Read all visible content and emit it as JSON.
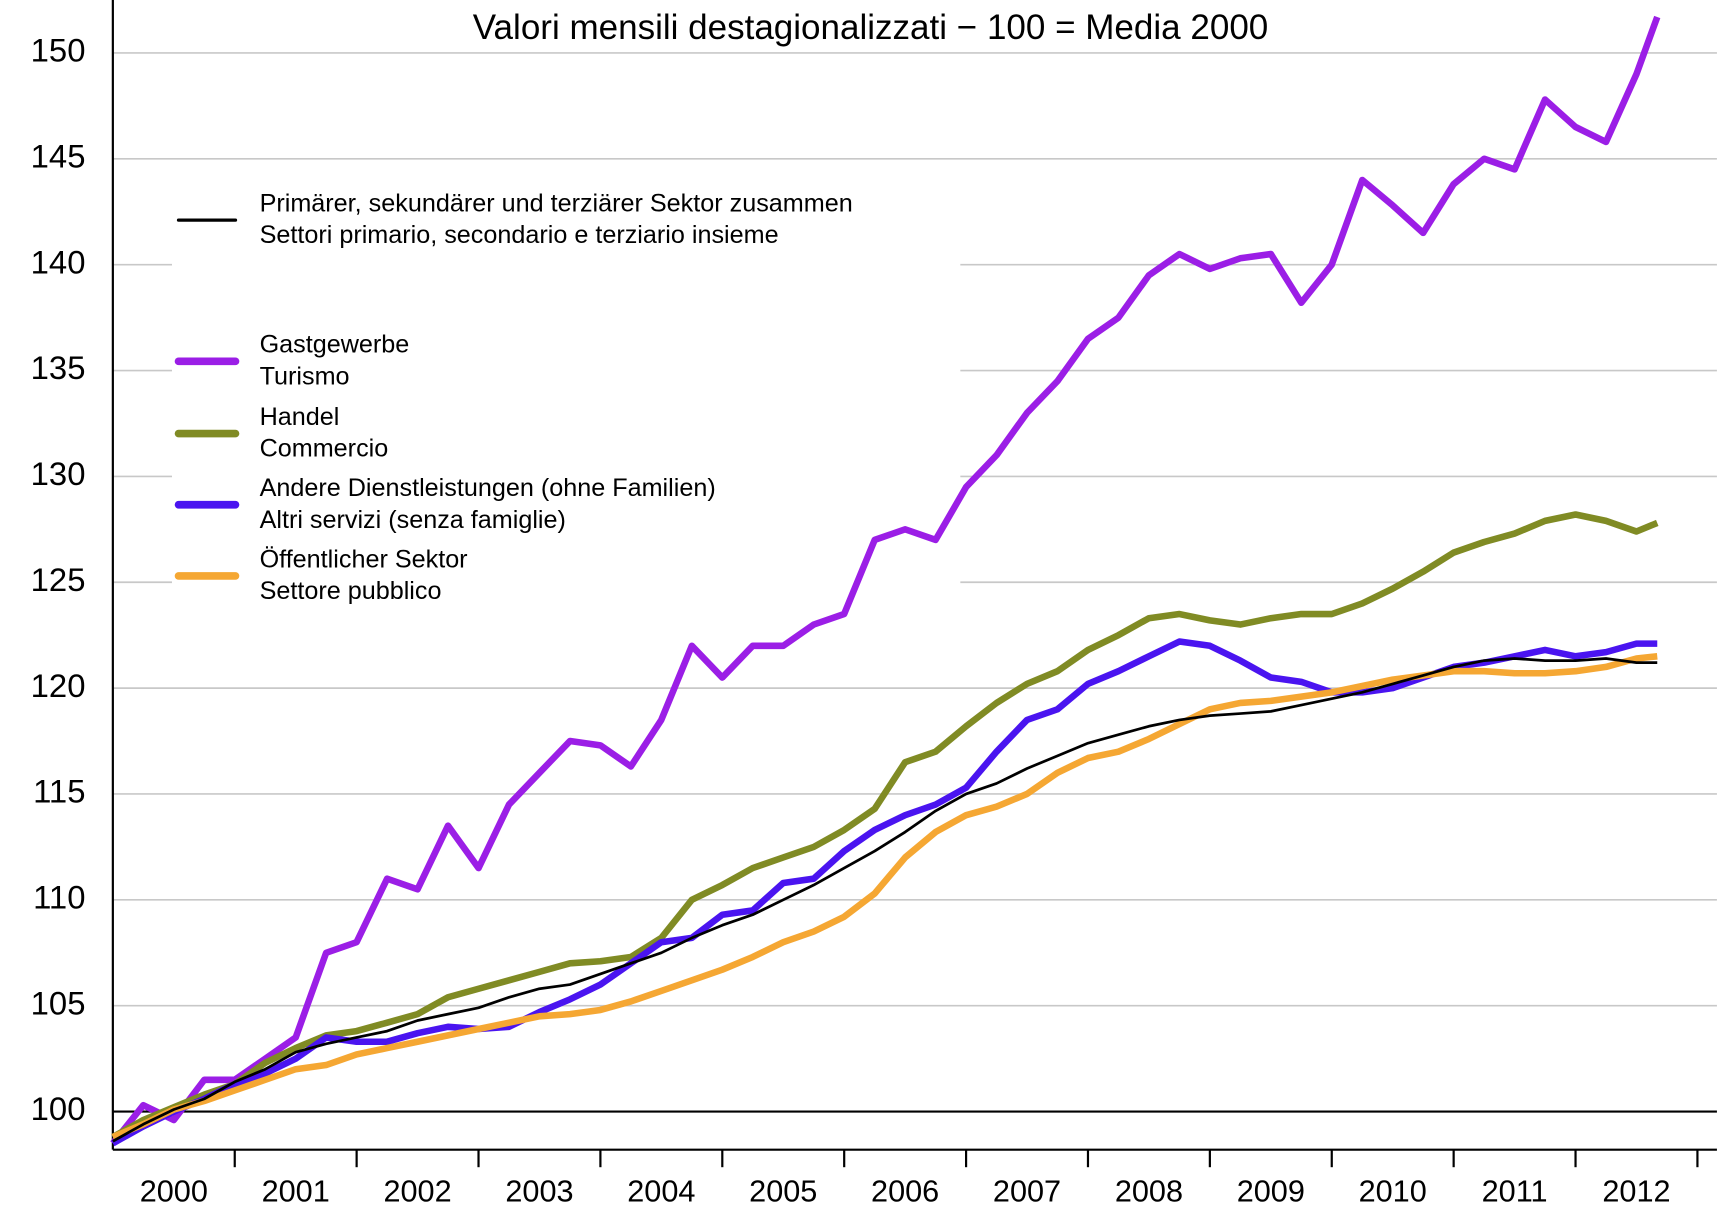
{
  "chart_data": {
    "type": "line",
    "title": "Valori mensili destagionalizzati − 100 = Media 2000",
    "x": [
      2000,
      2000.25,
      2000.5,
      2000.75,
      2001,
      2001.25,
      2001.5,
      2001.75,
      2002,
      2002.25,
      2002.5,
      2002.75,
      2003,
      2003.25,
      2003.5,
      2003.75,
      2004,
      2004.25,
      2004.5,
      2004.75,
      2005,
      2005.25,
      2005.5,
      2005.75,
      2006,
      2006.25,
      2006.5,
      2006.75,
      2007,
      2007.25,
      2007.5,
      2007.75,
      2008,
      2008.25,
      2008.5,
      2008.75,
      2009,
      2009.25,
      2009.5,
      2009.75,
      2010,
      2010.25,
      2010.5,
      2010.75,
      2011,
      2011.25,
      2011.5,
      2011.75,
      2012,
      2012.25,
      2012.5,
      2012.67
    ],
    "xlim": [
      2000,
      2013.16
    ],
    "xticks": [
      {
        "value": 2000.5,
        "label": "2000"
      },
      {
        "value": 2001.5,
        "label": "2001"
      },
      {
        "value": 2002.5,
        "label": "2002"
      },
      {
        "value": 2003.5,
        "label": "2003"
      },
      {
        "value": 2004.5,
        "label": "2004"
      },
      {
        "value": 2005.5,
        "label": "2005"
      },
      {
        "value": 2006.5,
        "label": "2006"
      },
      {
        "value": 2007.5,
        "label": "2007"
      },
      {
        "value": 2008.5,
        "label": "2008"
      },
      {
        "value": 2009.5,
        "label": "2009"
      },
      {
        "value": 2010.5,
        "label": "2010"
      },
      {
        "value": 2011.5,
        "label": "2011"
      },
      {
        "value": 2012.5,
        "label": "2012"
      }
    ],
    "ylim": [
      98.2,
      152.5
    ],
    "yticks": [
      100,
      105,
      110,
      115,
      120,
      125,
      130,
      135,
      140,
      145,
      150
    ],
    "grid": true,
    "legend": "upper-left",
    "series": [
      {
        "name": [
          "Primärer, sekundärer und terziärer Sektor zusammen",
          "Settori primario, secondario e terziario insieme"
        ],
        "color": "#000000",
        "width": 2.5,
        "values": [
          98.6,
          99.4,
          100.1,
          100.6,
          101.4,
          102,
          102.8,
          103.2,
          103.5,
          103.8,
          104.3,
          104.6,
          104.9,
          105.4,
          105.8,
          106,
          106.5,
          107,
          107.5,
          108.2,
          108.8,
          109.3,
          110,
          110.7,
          111.5,
          112.3,
          113.2,
          114.2,
          115,
          115.5,
          116.2,
          116.8,
          117.4,
          117.8,
          118.2,
          118.5,
          118.7,
          118.8,
          118.9,
          119.2,
          119.5,
          119.8,
          120.2,
          120.6,
          121,
          121.3,
          121.4,
          121.3,
          121.3,
          121.4,
          121.2,
          121.2
        ]
      },
      {
        "name": [
          "Gastgewerbe",
          "Turismo"
        ],
        "color": "#9b1ee6",
        "width": 6,
        "values": [
          98.5,
          100.3,
          99.6,
          101.5,
          101.5,
          102.5,
          103.5,
          107.5,
          108,
          111,
          110.5,
          113.5,
          111.5,
          114.5,
          116,
          117.5,
          117.3,
          116.3,
          118.5,
          122,
          120.5,
          122,
          122,
          123,
          123.5,
          127,
          127.5,
          127,
          129.5,
          131,
          133,
          134.5,
          136.5,
          137.5,
          139.5,
          140.5,
          139.8,
          140.3,
          140.5,
          138.2,
          140,
          144,
          142.8,
          141.5,
          143.8,
          145,
          144.5,
          147.8,
          146.5,
          145.8,
          149,
          151.7
        ]
      },
      {
        "name": [
          "Handel",
          "Commercio"
        ],
        "color": "#808b24",
        "width": 6,
        "values": [
          98.8,
          99.6,
          100.2,
          100.8,
          101.3,
          102.3,
          103,
          103.6,
          103.8,
          104.2,
          104.6,
          105.4,
          105.8,
          106.2,
          106.6,
          107,
          107.1,
          107.3,
          108.2,
          110,
          110.7,
          111.5,
          112,
          112.5,
          113.3,
          114.3,
          116.5,
          117,
          118.2,
          119.3,
          120.2,
          120.8,
          121.8,
          122.5,
          123.3,
          123.5,
          123.2,
          123,
          123.3,
          123.5,
          123.5,
          124,
          124.7,
          125.5,
          126.4,
          126.9,
          127.3,
          127.9,
          128.2,
          127.9,
          127.4,
          127.8
        ]
      },
      {
        "name": [
          "Andere Dienstleistungen (ohne Familien)",
          "Altri servizi (senza famiglie)"
        ],
        "color": "#4a14f0",
        "width": 6,
        "values": [
          98.5,
          99.3,
          100,
          100.6,
          101.3,
          101.8,
          102.5,
          103.5,
          103.3,
          103.3,
          103.7,
          104,
          103.9,
          104,
          104.7,
          105.3,
          106,
          107,
          108,
          108.2,
          109.3,
          109.5,
          110.8,
          111,
          112.3,
          113.3,
          114,
          114.5,
          115.3,
          117,
          118.5,
          119,
          120.2,
          120.8,
          121.5,
          122.2,
          122,
          121.3,
          120.5,
          120.3,
          119.8,
          119.8,
          120,
          120.5,
          121,
          121.2,
          121.5,
          121.8,
          121.5,
          121.7,
          122.1,
          122.1
        ]
      },
      {
        "name": [
          "Öffentlicher Sektor",
          "Settore pubblico"
        ],
        "color": "#f5a733",
        "width": 6,
        "values": [
          98.8,
          99.4,
          100.1,
          100.5,
          101,
          101.5,
          102,
          102.2,
          102.7,
          103,
          103.3,
          103.6,
          103.9,
          104.2,
          104.5,
          104.6,
          104.8,
          105.2,
          105.7,
          106.2,
          106.7,
          107.3,
          108,
          108.5,
          109.2,
          110.3,
          112,
          113.2,
          114,
          114.4,
          115,
          116,
          116.7,
          117,
          117.6,
          118.3,
          119,
          119.3,
          119.4,
          119.6,
          119.8,
          120.1,
          120.4,
          120.6,
          120.8,
          120.8,
          120.7,
          120.7,
          120.8,
          121,
          121.4,
          121.5
        ]
      }
    ]
  }
}
